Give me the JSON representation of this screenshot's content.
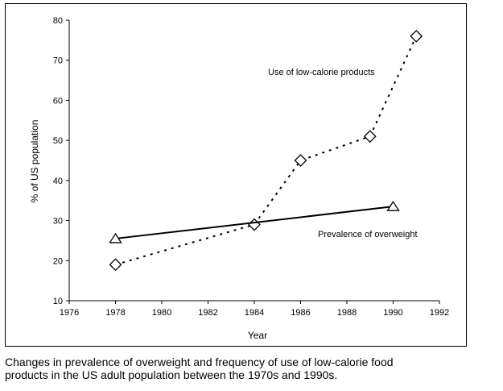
{
  "chart_data": {
    "type": "line",
    "xlabel": "Year",
    "ylabel": "% of US population",
    "xlim": [
      1976,
      1992
    ],
    "ylim": [
      10,
      80
    ],
    "xticks": [
      1976,
      1978,
      1980,
      1982,
      1984,
      1986,
      1988,
      1990,
      1992
    ],
    "yticks": [
      10,
      20,
      30,
      40,
      50,
      60,
      70,
      80
    ],
    "grid": false,
    "series": [
      {
        "name": "Use of low-calorie products",
        "style": "dotted",
        "marker": "diamond",
        "x": [
          1978,
          1984,
          1986,
          1989,
          1991
        ],
        "y": [
          19,
          29,
          45,
          51,
          76
        ]
      },
      {
        "name": "Prevalence of overweight",
        "style": "solid",
        "marker": "triangle",
        "x": [
          1978,
          1990
        ],
        "y": [
          25.5,
          33.5
        ]
      }
    ]
  },
  "caption": "Changes in prevalence of overweight and frequency of use of low-calorie food products in the US adult population between the 1970s and 1990s."
}
